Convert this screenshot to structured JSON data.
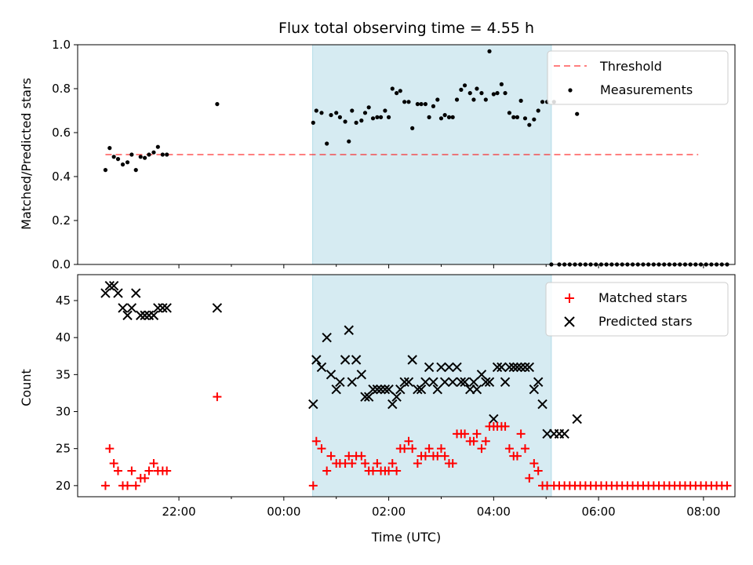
{
  "title": "Flux total observing time = 4.55 h",
  "colors": {
    "shade": "#add8e6",
    "threshold": "#ff0000",
    "measure": "#000000",
    "matched": "#ff0000",
    "predicted": "#000000"
  },
  "chart_data": [
    {
      "type": "scatter",
      "panel": "top",
      "ylabel": "Matched/Predicted stars",
      "xlim_hours": [
        20.07,
        32.6
      ],
      "ylim": [
        0,
        1.0
      ],
      "yticks": [
        "0.0",
        "0.2",
        "0.4",
        "0.6",
        "0.8",
        "1.0"
      ],
      "shaded_interval_hours": [
        24.55,
        29.1
      ],
      "legend": [
        "Threshold",
        "Measurements"
      ],
      "legend_position": "top-right",
      "threshold": {
        "name": "Threshold",
        "value": 0.5,
        "x_range_hours": [
          20.6,
          31.9
        ]
      },
      "series": [
        {
          "name": "Measurements",
          "x_hours": [
            20.6,
            20.68,
            20.76,
            20.84,
            20.93,
            21.02,
            21.1,
            21.18,
            21.27,
            21.35,
            21.43,
            21.52,
            21.6,
            21.69,
            21.77,
            22.73,
            24.56,
            24.62,
            24.72,
            24.82,
            24.9,
            25.0,
            25.07,
            25.17,
            25.24,
            25.3,
            25.38,
            25.48,
            25.55,
            25.62,
            25.7,
            25.78,
            25.85,
            25.93,
            26.0,
            26.07,
            26.15,
            26.22,
            26.3,
            26.38,
            26.45,
            26.55,
            26.62,
            26.7,
            26.77,
            26.85,
            26.93,
            27.0,
            27.07,
            27.15,
            27.22,
            27.3,
            27.38,
            27.45,
            27.55,
            27.62,
            27.68,
            27.77,
            27.85,
            27.92,
            28.0,
            28.07,
            28.15,
            28.22,
            28.3,
            28.38,
            28.45,
            28.52,
            28.6,
            28.68,
            28.77,
            28.85,
            28.93,
            29.02,
            29.15,
            29.1,
            29.25,
            29.35,
            29.45,
            29.55,
            29.65,
            29.75,
            29.85,
            29.95,
            30.05,
            30.15,
            30.25,
            30.35,
            30.45,
            30.55,
            30.65,
            30.75,
            30.85,
            30.95,
            31.05,
            31.15,
            31.25,
            31.35,
            31.45,
            31.55,
            31.65,
            31.75,
            31.85,
            31.95,
            32.05,
            32.15,
            32.25,
            32.35,
            32.45,
            29.59
          ],
          "y": [
            0.43,
            0.53,
            0.49,
            0.48,
            0.455,
            0.465,
            0.5,
            0.43,
            0.49,
            0.485,
            0.5,
            0.51,
            0.535,
            0.5,
            0.5,
            0.73,
            0.645,
            0.7,
            0.69,
            0.55,
            0.68,
            0.69,
            0.67,
            0.65,
            0.56,
            0.7,
            0.645,
            0.655,
            0.69,
            0.715,
            0.665,
            0.67,
            0.67,
            0.7,
            0.67,
            0.8,
            0.78,
            0.79,
            0.74,
            0.74,
            0.62,
            0.73,
            0.73,
            0.73,
            0.67,
            0.72,
            0.75,
            0.665,
            0.68,
            0.67,
            0.67,
            0.75,
            0.795,
            0.815,
            0.78,
            0.75,
            0.8,
            0.78,
            0.75,
            0.97,
            0.775,
            0.78,
            0.82,
            0.78,
            0.69,
            0.67,
            0.67,
            0.745,
            0.665,
            0.635,
            0.66,
            0.7,
            0.74,
            0.74,
            0.74,
            0,
            0,
            0,
            0,
            0,
            0,
            0,
            0,
            0,
            0,
            0,
            0,
            0,
            0,
            0,
            0,
            0,
            0,
            0,
            0,
            0,
            0,
            0,
            0,
            0,
            0,
            0,
            0,
            0,
            0,
            0,
            0,
            0,
            0,
            0.685
          ]
        }
      ]
    },
    {
      "type": "scatter",
      "panel": "bottom",
      "xlabel": "Time (UTC)",
      "ylabel": "Count",
      "xlim_hours": [
        20.07,
        32.6
      ],
      "ylim": [
        18.5,
        48.5
      ],
      "yticks": [
        "20",
        "25",
        "30",
        "35",
        "40",
        "45"
      ],
      "xticks": [
        "22:00",
        "00:00",
        "02:00",
        "04:00",
        "06:00",
        "08:00"
      ],
      "xtick_hours": [
        22,
        24,
        26,
        28,
        30,
        32
      ],
      "minor_xtick_hours": [
        23,
        25,
        27,
        29
      ],
      "shaded_interval_hours": [
        24.55,
        29.1
      ],
      "legend": [
        "Matched stars",
        "Predicted stars"
      ],
      "legend_position": "top-right",
      "series": [
        {
          "name": "Matched stars",
          "x_hours": [
            20.6,
            20.68,
            20.76,
            20.84,
            20.93,
            21.02,
            21.1,
            21.18,
            21.27,
            21.35,
            21.43,
            21.52,
            21.6,
            21.69,
            21.77,
            22.73,
            24.56,
            24.62,
            24.72,
            24.82,
            24.9,
            25.0,
            25.07,
            25.17,
            25.24,
            25.3,
            25.38,
            25.48,
            25.55,
            25.62,
            25.7,
            25.78,
            25.85,
            25.93,
            26.0,
            26.07,
            26.15,
            26.22,
            26.3,
            26.38,
            26.45,
            26.55,
            26.62,
            26.7,
            26.77,
            26.85,
            26.93,
            27.0,
            27.07,
            27.15,
            27.22,
            27.3,
            27.38,
            27.45,
            27.55,
            27.62,
            27.68,
            27.77,
            27.85,
            27.92,
            28.0,
            28.07,
            28.15,
            28.22,
            28.3,
            28.38,
            28.45,
            28.52,
            28.6,
            28.68,
            28.77,
            28.85,
            28.93,
            29.02,
            29.15,
            29.25,
            29.35,
            29.45,
            29.55,
            29.65,
            29.75,
            29.85,
            29.95,
            30.05,
            30.15,
            30.25,
            30.35,
            30.45,
            30.55,
            30.65,
            30.75,
            30.85,
            30.95,
            31.05,
            31.15,
            31.25,
            31.35,
            31.45,
            31.55,
            31.65,
            31.75,
            31.85,
            31.95,
            32.05,
            32.15,
            32.25,
            32.35,
            32.45
          ],
          "y": [
            20,
            25,
            23,
            22,
            20,
            20,
            22,
            20,
            21,
            21,
            22,
            23,
            22,
            22,
            22,
            32,
            20,
            26,
            25,
            22,
            24,
            23,
            23,
            23,
            24,
            23,
            24,
            24,
            23,
            22,
            22,
            23,
            22,
            22,
            22,
            23,
            22,
            25,
            25,
            26,
            25,
            23,
            24,
            24,
            25,
            24,
            24,
            25,
            24,
            23,
            23,
            27,
            27,
            27,
            26,
            26,
            27,
            25,
            26,
            28,
            28,
            28,
            28,
            28,
            25,
            24,
            24,
            27,
            25,
            21,
            23,
            22,
            20,
            20,
            20,
            20,
            20,
            20,
            20,
            20,
            20,
            20,
            20,
            20,
            20,
            20,
            20,
            20,
            20,
            20,
            20,
            20,
            20,
            20,
            20,
            20,
            20,
            20,
            20,
            20,
            20,
            20,
            20,
            20,
            20,
            20,
            20,
            20
          ]
        },
        {
          "name": "Predicted stars",
          "x_hours": [
            20.6,
            20.68,
            20.76,
            20.84,
            20.93,
            21.02,
            21.1,
            21.18,
            21.27,
            21.35,
            21.43,
            21.52,
            21.6,
            21.69,
            21.77,
            22.73,
            24.56,
            24.62,
            24.72,
            24.82,
            24.9,
            25.0,
            25.07,
            25.17,
            25.24,
            25.3,
            25.38,
            25.48,
            25.55,
            25.62,
            25.7,
            25.78,
            25.85,
            25.93,
            26.0,
            26.07,
            26.15,
            26.22,
            26.3,
            26.38,
            26.45,
            26.55,
            26.62,
            26.7,
            26.77,
            26.85,
            26.93,
            27.0,
            27.07,
            27.15,
            27.22,
            27.3,
            27.38,
            27.45,
            27.55,
            27.62,
            27.68,
            27.77,
            27.85,
            27.92,
            28.0,
            28.07,
            28.15,
            28.22,
            28.3,
            28.38,
            28.45,
            28.52,
            28.6,
            28.68,
            28.77,
            28.85,
            28.93,
            29.02,
            29.15,
            29.25,
            29.35,
            29.59
          ],
          "y": [
            46,
            47,
            47,
            46,
            44,
            43,
            44,
            46,
            43,
            43,
            43,
            43,
            44,
            44,
            44,
            44,
            31,
            37,
            36,
            40,
            35,
            33,
            34,
            37,
            41,
            34,
            37,
            35,
            32,
            32,
            33,
            33,
            33,
            33,
            33,
            31,
            32,
            33,
            34,
            34,
            37,
            33,
            33,
            34,
            36,
            34,
            33,
            36,
            34,
            36,
            34,
            36,
            34,
            34,
            33,
            34,
            33,
            35,
            34,
            34,
            29,
            36,
            36,
            34,
            36,
            36,
            36,
            36,
            36,
            36,
            33,
            34,
            31,
            27,
            27,
            27,
            27,
            29
          ]
        }
      ]
    }
  ]
}
